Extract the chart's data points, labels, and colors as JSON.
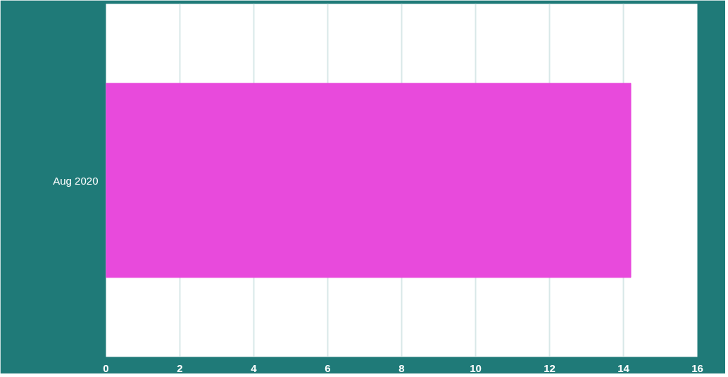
{
  "chart_data": {
    "type": "bar",
    "orientation": "horizontal",
    "categories": [
      "Aug 2020"
    ],
    "series": [
      {
        "color": "#e84adc",
        "values": [
          14.2
        ]
      }
    ],
    "xlim": [
      0,
      16
    ],
    "xticks": [
      0,
      2,
      4,
      6,
      8,
      10,
      12,
      14,
      16
    ],
    "grid": "x"
  }
}
